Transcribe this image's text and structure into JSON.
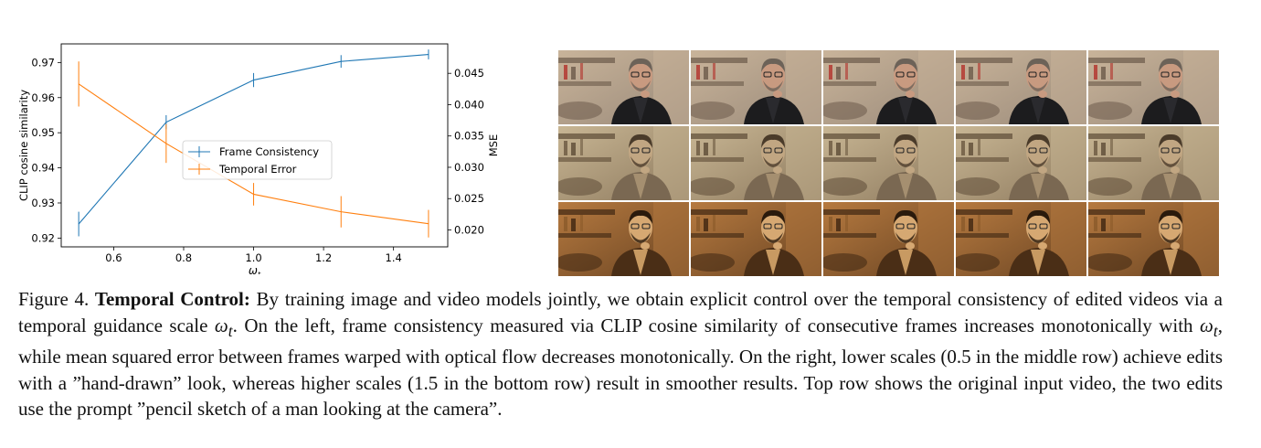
{
  "chart_data": {
    "type": "line",
    "x": [
      0.5,
      0.75,
      1.0,
      1.25,
      1.5
    ],
    "xlabel": "ω_t",
    "xticks": [
      0.6,
      0.8,
      1.0,
      1.2,
      1.4
    ],
    "xlim": [
      0.45,
      1.555
    ],
    "y_left": {
      "label": "CLIP cosine similarity",
      "lim": [
        0.9175,
        0.9753
      ],
      "ticks": [
        0.92,
        0.93,
        0.94,
        0.95,
        0.96,
        0.97
      ]
    },
    "y_right": {
      "label": "MSE",
      "lim": [
        0.0173,
        0.0497
      ],
      "ticks": [
        0.02,
        0.025,
        0.03,
        0.035,
        0.04,
        0.045
      ]
    },
    "series": [
      {
        "name": "Frame Consistency",
        "axis": "left",
        "color": "#1f77b4",
        "values": [
          0.924,
          0.953,
          0.965,
          0.9703,
          0.9723
        ],
        "errors": [
          0.0035,
          0.002,
          0.002,
          0.0018,
          0.0014
        ]
      },
      {
        "name": "Temporal Error",
        "axis": "right",
        "color": "#ff7f0e",
        "values": [
          0.0433,
          0.0338,
          0.0257,
          0.0229,
          0.021
        ],
        "errors": [
          0.0036,
          0.0031,
          0.0018,
          0.0025,
          0.0022
        ]
      }
    ],
    "legend_position": "center"
  },
  "figure": {
    "rows": [
      "original input video",
      "scale 0.5",
      "scale 1.5"
    ],
    "frames_per_row": 5
  },
  "caption": {
    "label": "Figure 4.",
    "title": "Temporal Control:",
    "text_1": "By training image and video models jointly, we obtain explicit control over the temporal consistency of edited videos via a temporal guidance scale ",
    "math_1": "ωt",
    "text_2": ". On the left, frame consistency measured via CLIP cosine similarity of consecutive frames increases monotonically with ",
    "math_2": "ωt",
    "text_3": ", while mean squared error between frames warped with optical flow decreases monotonically. On the right, lower scales (0.5 in the middle row) achieve edits with a ”hand-drawn” look, whereas higher scales (1.5 in the bottom row) result in smoother results. Top row shows the original input video, the two edits use the prompt ”pencil sketch of a man looking at the camera”."
  }
}
